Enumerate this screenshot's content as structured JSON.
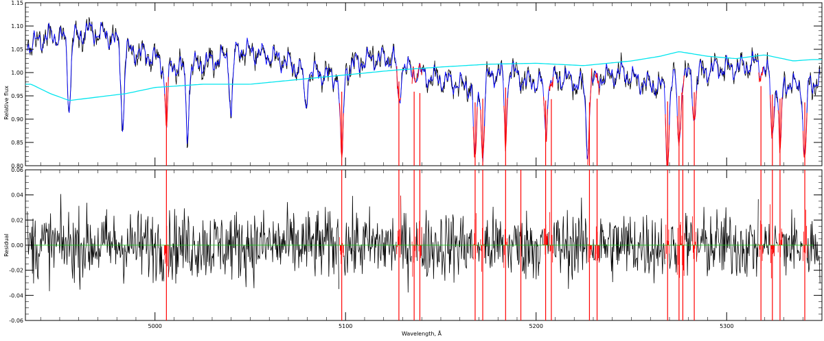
{
  "chart_data": [
    {
      "type": "line",
      "panel": "top",
      "ylabel": "Relative flux",
      "xlim": [
        4932,
        5350
      ],
      "ylim": [
        0.8,
        1.15
      ],
      "y_ticks": [
        "0.80",
        "0.85",
        "0.90",
        "0.95",
        "1.00",
        "1.05",
        "1.10",
        "1.15"
      ],
      "x_tick_values": [
        5000,
        5100,
        5200,
        5300
      ],
      "colors": {
        "observed": "#000000",
        "model": "#0000ff",
        "masked": "#ff0000",
        "continuum": "#00e5ee"
      },
      "series": [
        {
          "role": "observed",
          "x": [
            4935,
            4945,
            4955,
            4965,
            4975,
            4985,
            4995,
            5005,
            5015,
            5025,
            5035,
            5045,
            5055,
            5065,
            5075,
            5085,
            5095,
            5105,
            5115,
            5125,
            5135,
            5145,
            5155,
            5165,
            5175,
            5185,
            5195,
            5205,
            5215,
            5225,
            5235,
            5245,
            5255,
            5265,
            5275,
            5285,
            5295,
            5305,
            5315,
            5325,
            5335,
            5345
          ],
          "y": [
            1.06,
            1.08,
            1.07,
            1.09,
            1.08,
            1.05,
            1.04,
            1.02,
            1.01,
            1.02,
            1.03,
            1.05,
            1.04,
            1.03,
            1.01,
            1.0,
            0.99,
            1.02,
            1.03,
            1.03,
            1.0,
            0.99,
            0.98,
            0.97,
            0.99,
            1.01,
            0.98,
            0.98,
            0.99,
            0.97,
            0.99,
            1.0,
            0.98,
            0.97,
            0.99,
            1.0,
            1.01,
            1.01,
            1.02,
            0.99,
            0.97,
            0.98
          ]
        },
        {
          "role": "continuum",
          "x": [
            4935,
            4945,
            4955,
            4965,
            4975,
            4985,
            5000,
            5025,
            5050,
            5075,
            5100,
            5125,
            5150,
            5175,
            5200,
            5225,
            5250,
            5265,
            5275,
            5290,
            5305,
            5320,
            5335,
            5345
          ],
          "y": [
            0.975,
            0.955,
            0.94,
            0.945,
            0.95,
            0.955,
            0.968,
            0.975,
            0.975,
            0.985,
            0.995,
            1.005,
            1.012,
            1.018,
            1.02,
            1.015,
            1.025,
            1.035,
            1.045,
            1.035,
            1.03,
            1.038,
            1.025,
            1.028
          ]
        }
      ],
      "absorption_lines": [
        {
          "x": 4955,
          "depth": 0.92
        },
        {
          "x": 4983,
          "depth": 0.88
        },
        {
          "x": 5006,
          "depth": 0.89
        },
        {
          "x": 5017,
          "depth": 0.87
        },
        {
          "x": 5040,
          "depth": 0.91
        },
        {
          "x": 5079,
          "depth": 0.92
        },
        {
          "x": 5098,
          "depth": 0.8
        },
        {
          "x": 5128,
          "depth": 0.93
        },
        {
          "x": 5168,
          "depth": 0.8
        },
        {
          "x": 5172,
          "depth": 0.82
        },
        {
          "x": 5184,
          "depth": 0.86
        },
        {
          "x": 5205,
          "depth": 0.87
        },
        {
          "x": 5227,
          "depth": 0.83
        },
        {
          "x": 5269,
          "depth": 0.8
        },
        {
          "x": 5275,
          "depth": 0.84
        },
        {
          "x": 5283,
          "depth": 0.9
        },
        {
          "x": 5324,
          "depth": 0.86
        },
        {
          "x": 5328,
          "depth": 0.83
        },
        {
          "x": 5341,
          "depth": 0.8
        }
      ],
      "masked_regions": [
        5006,
        5098,
        5128,
        5136,
        5139,
        5168,
        5172,
        5184,
        5205,
        5208,
        5228,
        5232,
        5269,
        5275,
        5277,
        5283,
        5318,
        5324,
        5328,
        5341
      ]
    },
    {
      "type": "line",
      "panel": "bottom",
      "xlabel": "Wavelength, Å",
      "ylabel": "Residual",
      "xlim": [
        4932,
        5350
      ],
      "ylim": [
        -0.06,
        0.06
      ],
      "x_ticks": [
        "5000",
        "5100",
        "5200",
        "5300"
      ],
      "y_ticks": [
        "-0.06",
        "-0.04",
        "-0.02",
        "0.00",
        "0.02",
        "0.04",
        "0.06"
      ],
      "noise_amplitude": 0.02,
      "zero_line": 0.0,
      "colors": {
        "residual": "#000000",
        "masked": "#ff0000",
        "zero": "#00cc00"
      },
      "masked_regions": [
        5006,
        5098,
        5128,
        5136,
        5139,
        5168,
        5172,
        5184,
        5192,
        5205,
        5208,
        5228,
        5232,
        5269,
        5275,
        5277,
        5283,
        5318,
        5324,
        5328,
        5341
      ]
    }
  ]
}
